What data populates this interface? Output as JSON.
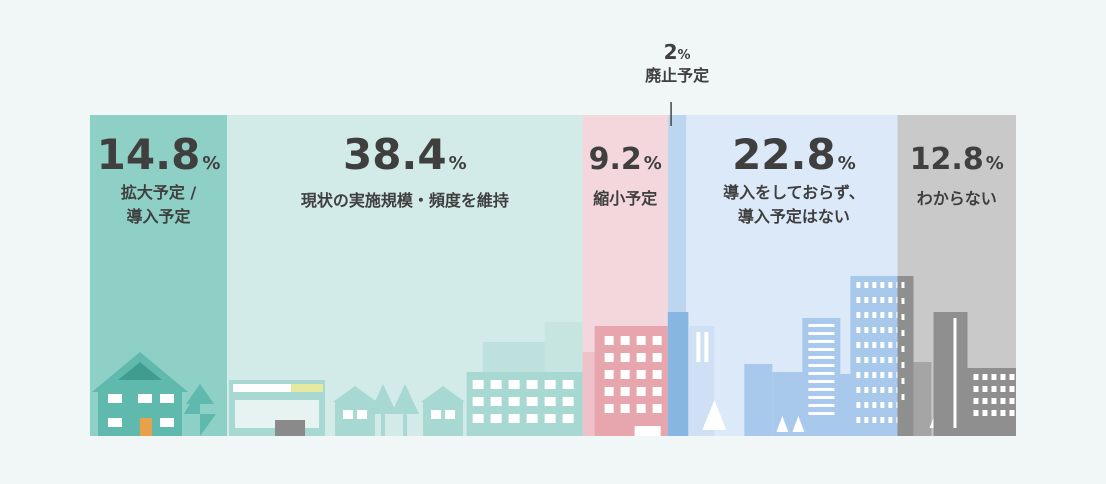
{
  "chart_data": {
    "type": "bar",
    "subtype": "100%-stacked-horizontal",
    "unit": "%",
    "segments": [
      {
        "label": "拡大予定／導入予定",
        "value": 14.8,
        "label_lines": [
          "拡大予定 /",
          "導入予定"
        ],
        "color": "#8ecfc6",
        "bg": "#8ecfc6",
        "illus": "#5fb9ac"
      },
      {
        "label": "現状の実施規模・頻度を維持",
        "value": 38.4,
        "label_lines": [
          "現状の実施規模・頻度を維持"
        ],
        "color": "#d2ebe9",
        "bg": "#d2ebe9",
        "illus": "#a8d8d2"
      },
      {
        "label": "縮小予定",
        "value": 9.2,
        "label_lines": [
          "縮小予定"
        ],
        "color": "#f4d7dc",
        "bg": "#f4d7dc",
        "illus": "#e7a5ad"
      },
      {
        "label": "廃止予定",
        "value": 2.0,
        "label_lines": [
          "廃止予定"
        ],
        "color": "#bcd6ef",
        "bg": "#bcd6ef",
        "illus": "#86b6e1"
      },
      {
        "label": "導入をしておらず、導入予定はない",
        "value": 22.8,
        "label_lines": [
          "導入をしておらず、",
          "導入予定はない"
        ],
        "color": "#dce9f8",
        "bg": "#dce9f8",
        "illus": "#a9c9ec"
      },
      {
        "label": "わからない",
        "value": 12.8,
        "label_lines": [
          "わからない"
        ],
        "color": "#c9c9c9",
        "bg": "#c9c9c9",
        "illus": "#8f8f8f"
      }
    ],
    "percent_sign": "%"
  }
}
